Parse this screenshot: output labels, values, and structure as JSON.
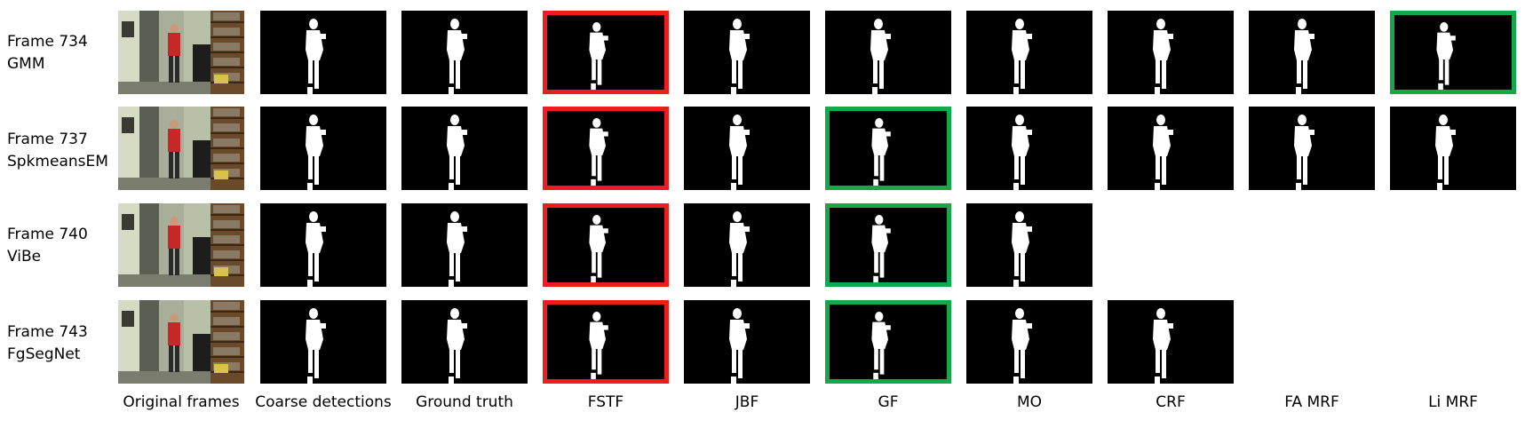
{
  "rows": [
    {
      "frame": "Frame 734",
      "method": "GMM"
    },
    {
      "frame": "Frame 737",
      "method": "SpkmeansEM"
    },
    {
      "frame": "Frame 740",
      "method": "ViBe"
    },
    {
      "frame": "Frame 743",
      "method": "FgSegNet"
    }
  ],
  "columns": [
    "Original frames",
    "Coarse detections",
    "Ground truth",
    "FSTF",
    "JBF",
    "GF",
    "MO",
    "CRF",
    "FA MRF",
    "Li MRF"
  ],
  "colors": {
    "red_highlight": "#ee1c1c",
    "green_highlight": "#13a84a",
    "mask_background": "#000000",
    "mask_foreground": "#ffffff"
  },
  "highlights": {
    "red": [
      [
        0,
        3
      ],
      [
        1,
        3
      ],
      [
        2,
        3
      ],
      [
        3,
        3
      ]
    ],
    "green": [
      [
        0,
        9
      ],
      [
        1,
        5
      ],
      [
        2,
        5
      ],
      [
        3,
        5
      ]
    ]
  },
  "row_columns_present": [
    10,
    10,
    7,
    8
  ]
}
